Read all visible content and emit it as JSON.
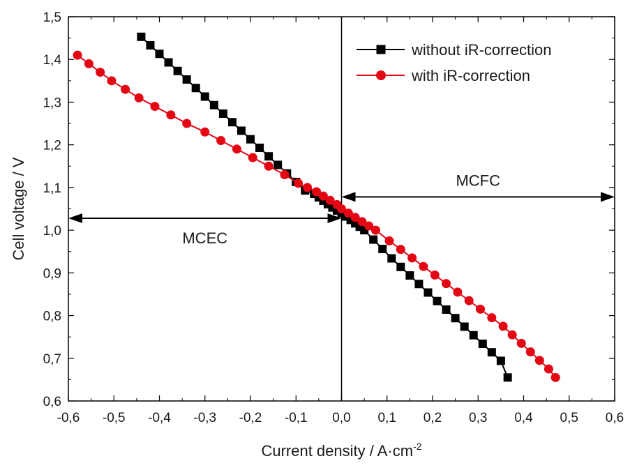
{
  "chart_data": {
    "type": "line",
    "xlabel": "Current density / A·cm",
    "xlabel_sup": "-2",
    "ylabel": "Cell voltage / V",
    "xlim": [
      -0.6,
      0.6
    ],
    "ylim": [
      0.6,
      1.5
    ],
    "x_ticks": [
      -0.6,
      -0.5,
      -0.4,
      -0.3,
      -0.2,
      -0.1,
      0.0,
      0.1,
      0.2,
      0.3,
      0.4,
      0.5,
      0.6
    ],
    "x_tick_labels": [
      "-0,6",
      "-0,5",
      "-0,4",
      "-0,3",
      "-0,2",
      "-0,1",
      "0,0",
      "0,1",
      "0,2",
      "0,3",
      "0,4",
      "0,5",
      "0,6"
    ],
    "y_ticks": [
      0.6,
      0.7,
      0.8,
      0.9,
      1.0,
      1.1,
      1.2,
      1.3,
      1.4,
      1.5
    ],
    "y_tick_labels": [
      "0,6",
      "0,7",
      "0,8",
      "0,9",
      "1,0",
      "1,1",
      "1,2",
      "1,3",
      "1,4",
      "1,5"
    ],
    "grid": false,
    "legend_position": "top-right",
    "series": [
      {
        "name": "without iR-correction",
        "color": "#000000",
        "marker": "square",
        "x": [
          -0.44,
          -0.42,
          -0.4,
          -0.38,
          -0.36,
          -0.34,
          -0.32,
          -0.3,
          -0.28,
          -0.26,
          -0.24,
          -0.22,
          -0.2,
          -0.18,
          -0.16,
          -0.14,
          -0.12,
          -0.1,
          -0.08,
          -0.06,
          -0.05,
          -0.04,
          -0.03,
          -0.02,
          -0.01,
          0.0,
          0.01,
          0.02,
          0.03,
          0.04,
          0.05,
          0.07,
          0.09,
          0.11,
          0.13,
          0.15,
          0.17,
          0.19,
          0.21,
          0.23,
          0.25,
          0.27,
          0.29,
          0.31,
          0.33,
          0.35,
          0.365
        ],
        "y": [
          1.453,
          1.433,
          1.413,
          1.393,
          1.373,
          1.353,
          1.333,
          1.313,
          1.293,
          1.273,
          1.253,
          1.233,
          1.213,
          1.193,
          1.173,
          1.153,
          1.133,
          1.113,
          1.093,
          1.085,
          1.077,
          1.069,
          1.061,
          1.053,
          1.046,
          1.04,
          1.032,
          1.024,
          1.016,
          1.008,
          1.0,
          0.978,
          0.956,
          0.934,
          0.914,
          0.894,
          0.874,
          0.854,
          0.834,
          0.814,
          0.794,
          0.774,
          0.754,
          0.734,
          0.714,
          0.694,
          0.655
        ]
      },
      {
        "name": "with iR-correction",
        "color": "#e30613",
        "marker": "circle",
        "x": [
          -0.58,
          -0.555,
          -0.53,
          -0.505,
          -0.475,
          -0.445,
          -0.41,
          -0.375,
          -0.34,
          -0.3,
          -0.265,
          -0.23,
          -0.195,
          -0.16,
          -0.125,
          -0.095,
          -0.075,
          -0.055,
          -0.04,
          -0.025,
          -0.01,
          0.0,
          0.015,
          0.03,
          0.045,
          0.06,
          0.075,
          0.105,
          0.13,
          0.155,
          0.18,
          0.205,
          0.23,
          0.255,
          0.28,
          0.305,
          0.33,
          0.355,
          0.375,
          0.395,
          0.415,
          0.435,
          0.455,
          0.47
        ],
        "y": [
          1.41,
          1.39,
          1.37,
          1.35,
          1.33,
          1.31,
          1.29,
          1.27,
          1.25,
          1.23,
          1.21,
          1.19,
          1.17,
          1.15,
          1.13,
          1.11,
          1.1,
          1.09,
          1.08,
          1.07,
          1.06,
          1.05,
          1.04,
          1.03,
          1.02,
          1.01,
          1.0,
          0.975,
          0.955,
          0.935,
          0.915,
          0.895,
          0.875,
          0.855,
          0.835,
          0.815,
          0.795,
          0.775,
          0.755,
          0.735,
          0.715,
          0.695,
          0.675,
          0.655
        ]
      }
    ],
    "annotations": [
      {
        "label": "MCEC",
        "arrow_from_x": -0.6,
        "arrow_to_x": 0.0,
        "arrow_y": 1.028
      },
      {
        "label": "MCFC",
        "arrow_from_x": 0.0,
        "arrow_to_x": 0.6,
        "arrow_y": 1.078
      }
    ],
    "vertical_line_x": 0.0
  }
}
